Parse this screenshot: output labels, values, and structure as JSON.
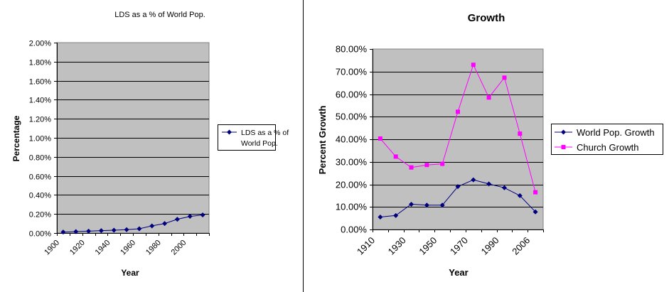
{
  "chart_data": [
    {
      "type": "line",
      "title": "LDS as a % of World Pop.",
      "xlabel": "Year",
      "ylabel": "Percentage",
      "x_tick_labels": [
        "1900",
        "1920",
        "1940",
        "1960",
        "1980",
        "2000"
      ],
      "y_tick_labels": [
        "0.00%",
        "0.20%",
        "0.40%",
        "0.60%",
        "0.80%",
        "1.00%",
        "1.20%",
        "1.40%",
        "1.60%",
        "1.80%",
        "2.00%"
      ],
      "ylim": [
        0,
        2.0
      ],
      "grid": true,
      "legend": "right",
      "series": [
        {
          "name": "LDS as a % of World Pop.",
          "legend_lines": [
            "LDS as a % of",
            "World Pop."
          ],
          "color": "#000080",
          "values": [
            0.01,
            0.015,
            0.02,
            0.025,
            0.03,
            0.035,
            0.045,
            0.075,
            0.1,
            0.145,
            0.175,
            0.19
          ]
        }
      ]
    },
    {
      "type": "line",
      "title": "Growth",
      "xlabel": "Year",
      "ylabel": "Percent Growth",
      "x_tick_labels": [
        "1910",
        "1930",
        "1950",
        "1970",
        "1990",
        "2006"
      ],
      "y_tick_labels": [
        "0.00%",
        "10.00%",
        "20.00%",
        "30.00%",
        "40.00%",
        "50.00%",
        "60.00%",
        "70.00%",
        "80.00%"
      ],
      "ylim": [
        0,
        80
      ],
      "grid": true,
      "legend": "right",
      "series": [
        {
          "name": "World Pop. Growth",
          "color": "#000080",
          "values": [
            5.5,
            6.2,
            11.2,
            10.8,
            10.8,
            19,
            22,
            20.2,
            18.5,
            15,
            7.8
          ]
        },
        {
          "name": "Church Growth",
          "color": "#ff00ff",
          "values": [
            40.3,
            32.3,
            27.5,
            28.6,
            29.1,
            52.2,
            73,
            58.5,
            67.3,
            42.5,
            16.5
          ]
        }
      ]
    }
  ]
}
